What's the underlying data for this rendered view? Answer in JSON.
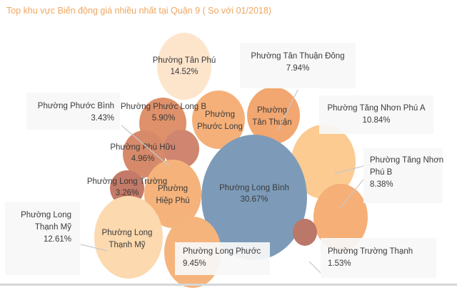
{
  "chart_data": {
    "type": "bubble",
    "title": "Top  khu vực Biến động giá nhiều nhất tại  Quận 9 ( So với 01/2018)",
    "unit": "%",
    "items": [
      {
        "name": "Phường Long Bình",
        "value": 30.67,
        "color": "#7d9bb8",
        "value_label": "30.67%"
      },
      {
        "name": "Phường Tân Phú",
        "value": 14.52,
        "color": "#fde5cc",
        "value_label": "14.52%"
      },
      {
        "name": "Phường Long Thạnh Mỹ",
        "value": 12.61,
        "color": "#fcd9ae",
        "value_label": "12.61%"
      },
      {
        "name": "Phường Tăng Nhơn Phú A",
        "value": 10.84,
        "color": "#fbcb92",
        "value_label": "10.84%"
      },
      {
        "name": "Phường Long Phước",
        "value": 9.45,
        "color": "#f5b47c",
        "value_label": "9.45%"
      },
      {
        "name": "Phường Tăng Nhơn Phú B",
        "value": 8.38,
        "color": "#f5af77",
        "value_label": "8.38%"
      },
      {
        "name": "Phường Tân Thuận Đông",
        "value": 7.94,
        "color": "#f2a56e",
        "value_label": "7.94%"
      },
      {
        "name": "Phường Phước Long B",
        "value": 5.9,
        "color": "#de916a",
        "value_label": "5.90%"
      },
      {
        "name": "Phường Phú Hữu",
        "value": 4.96,
        "color": "#d68a6a",
        "value_label": "4.96%"
      },
      {
        "name": "Phường Phước Bình",
        "value": 3.43,
        "color": "#d08570",
        "value_label": "3.43%"
      },
      {
        "name": "Phường Long Trường",
        "value": 3.26,
        "color": "#c47a68",
        "value_label": "3.26%"
      },
      {
        "name": "Phường Trường Thạnh",
        "value": 1.53,
        "color": "#bb7868",
        "value_label": "1.53%"
      },
      {
        "name": "Phường Phước Long",
        "value": null,
        "color": "#f5b07a",
        "value_label": ""
      },
      {
        "name": "Phường Tân Thuận",
        "value": null,
        "color": "#f2a670",
        "value_label": ""
      },
      {
        "name": "Phường Hiệp Phú",
        "value": null,
        "color": "#f5b27a",
        "value_label": ""
      }
    ],
    "inner_labels": {
      "Phường Phước Long": [
        "Phường",
        "Phước Long"
      ],
      "Phường Tân Thuận": [
        "Phường",
        "Tân Thuận"
      ],
      "Phường Hiệp Phú": [
        "Phường",
        "Hiệp Phú"
      ],
      "Phường Long Thạnh Mỹ": [
        "Phường Long",
        "Thạnh Mỹ"
      ]
    },
    "callouts": {
      "Phường Tân Thuận Đông": [
        "Phường Tân Thuận Đông",
        "7.94%"
      ],
      "Phường Phước Bình": [
        "Phường Phước Bình",
        "3.43%"
      ],
      "Phường Tăng Nhơn Phú A": [
        "Phường Tăng Nhơn Phú A",
        "10.84%"
      ],
      "Phường Tăng Nhơn Phú B": [
        "Phường Tăng Nhơn",
        "Phú B",
        "8.38%"
      ],
      "Phường Long Thạnh Mỹ": [
        "Phường Long",
        "Thạnh Mỹ",
        "12.61%"
      ],
      "Phường Long Phước": [
        "Phường Long Phước",
        "9.45%"
      ],
      "Phường Trường Thạnh": [
        "Phường Trường Thạnh",
        "1.53%"
      ]
    },
    "legend": "none"
  }
}
